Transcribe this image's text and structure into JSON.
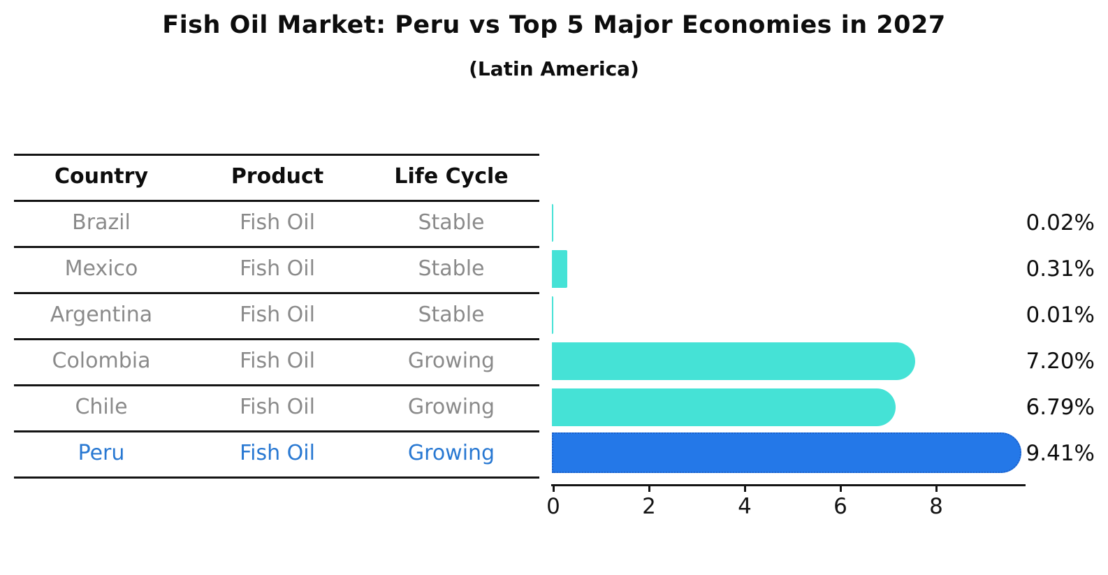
{
  "title": "Fish Oil Market: Peru vs Top 5 Major Economies in 2027",
  "subtitle": "(Latin America)",
  "table": {
    "headers": {
      "country": "Country",
      "product": "Product",
      "life_cycle": "Life Cycle"
    },
    "rows": [
      {
        "country": "Brazil",
        "product": "Fish Oil",
        "life_cycle": "Stable",
        "highlight": false
      },
      {
        "country": "Mexico",
        "product": "Fish Oil",
        "life_cycle": "Stable",
        "highlight": false
      },
      {
        "country": "Argentina",
        "product": "Fish Oil",
        "life_cycle": "Stable",
        "highlight": false
      },
      {
        "country": "Colombia",
        "product": "Fish Oil",
        "life_cycle": "Growing",
        "highlight": false
      },
      {
        "country": "Chile",
        "product": "Fish Oil",
        "life_cycle": "Growing",
        "highlight": false
      },
      {
        "country": "Peru",
        "product": "Fish Oil",
        "life_cycle": "Growing",
        "highlight": true
      }
    ]
  },
  "chart_data": {
    "type": "bar",
    "orientation": "horizontal",
    "title": "Fish Oil Market: Peru vs Top 5 Major Economies in 2027",
    "subtitle": "(Latin America)",
    "categories": [
      "Brazil",
      "Mexico",
      "Argentina",
      "Colombia",
      "Chile",
      "Peru"
    ],
    "values": [
      0.02,
      0.31,
      0.01,
      7.2,
      6.79,
      9.41
    ],
    "value_labels": [
      "0.02%",
      "0.31%",
      "0.01%",
      "7.20%",
      "6.79%",
      "9.41%"
    ],
    "x_ticks": [
      "0",
      "2",
      "4",
      "6",
      "8"
    ],
    "xlim": [
      0,
      9.9
    ],
    "grid": false,
    "legend": "none",
    "highlight_index": 5,
    "colors": {
      "bar": "#45E2D6",
      "highlight_bar": "#2478E8",
      "highlight_bar_border": "#1B5FC8",
      "highlight_text": "#2878D2",
      "muted_text": "#8a8a8a",
      "axis": "#141414"
    }
  }
}
